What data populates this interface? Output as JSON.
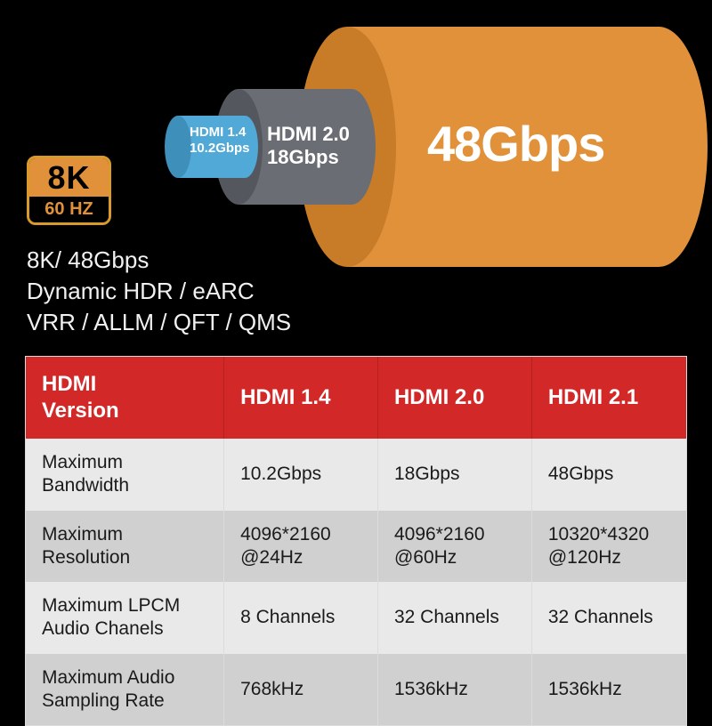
{
  "colors": {
    "bg": "#000000",
    "cyl_small_fill": "#50a9d6",
    "cyl_small_face": "#3f8fbb",
    "cyl_med_fill": "#6a6e74",
    "cyl_med_face": "#54585e",
    "cyl_large_fill": "#e0913a",
    "cyl_large_face": "#c87c28",
    "badge_border": "#d99a2b",
    "badge_top_bg": "#e0913a",
    "badge_top_text": "#000000",
    "badge_bottom_bg": "#000000",
    "badge_bottom_text": "#e0913a",
    "table_header_bg": "#d32828",
    "table_header_text": "#ffffff",
    "row_odd_bg": "#e9e9e9",
    "row_even_bg": "#d0d0d0",
    "table_border": "#dcdcdc",
    "text_light": "#ffffff"
  },
  "badge": {
    "top": "8K",
    "bottom": "60 HZ"
  },
  "features": {
    "line1": "8K/ 48Gbps",
    "line2": "Dynamic HDR / eARC",
    "line3": "VRR / ALLM / QFT / QMS"
  },
  "cylinders": {
    "small": {
      "label_line1": "HDMI 1.4",
      "label_line2": "10.2Gbps"
    },
    "medium": {
      "label_line1": "HDMI 2.0",
      "label_line2": "18Gbps"
    },
    "large": {
      "label": "48Gbps"
    }
  },
  "table": {
    "header": [
      "HDMI Version",
      "HDMI 1.4",
      "HDMI 2.0",
      "HDMI 2.1"
    ],
    "rows": [
      {
        "label": "Maximum Bandwidth",
        "v": [
          "10.2Gbps",
          "18Gbps",
          "48Gbps"
        ]
      },
      {
        "label": "Maximum Resolution",
        "v": [
          "4096*2160 @24Hz",
          "4096*2160 @60Hz",
          "10320*4320 @120Hz"
        ]
      },
      {
        "label": "Maximum LPCM Audio Chanels",
        "v": [
          "8 Channels",
          "32 Channels",
          "32 Channels"
        ]
      },
      {
        "label": "Maximum Audio Sampling Rate",
        "v": [
          "768kHz",
          "1536kHz",
          "1536kHz"
        ]
      }
    ]
  }
}
